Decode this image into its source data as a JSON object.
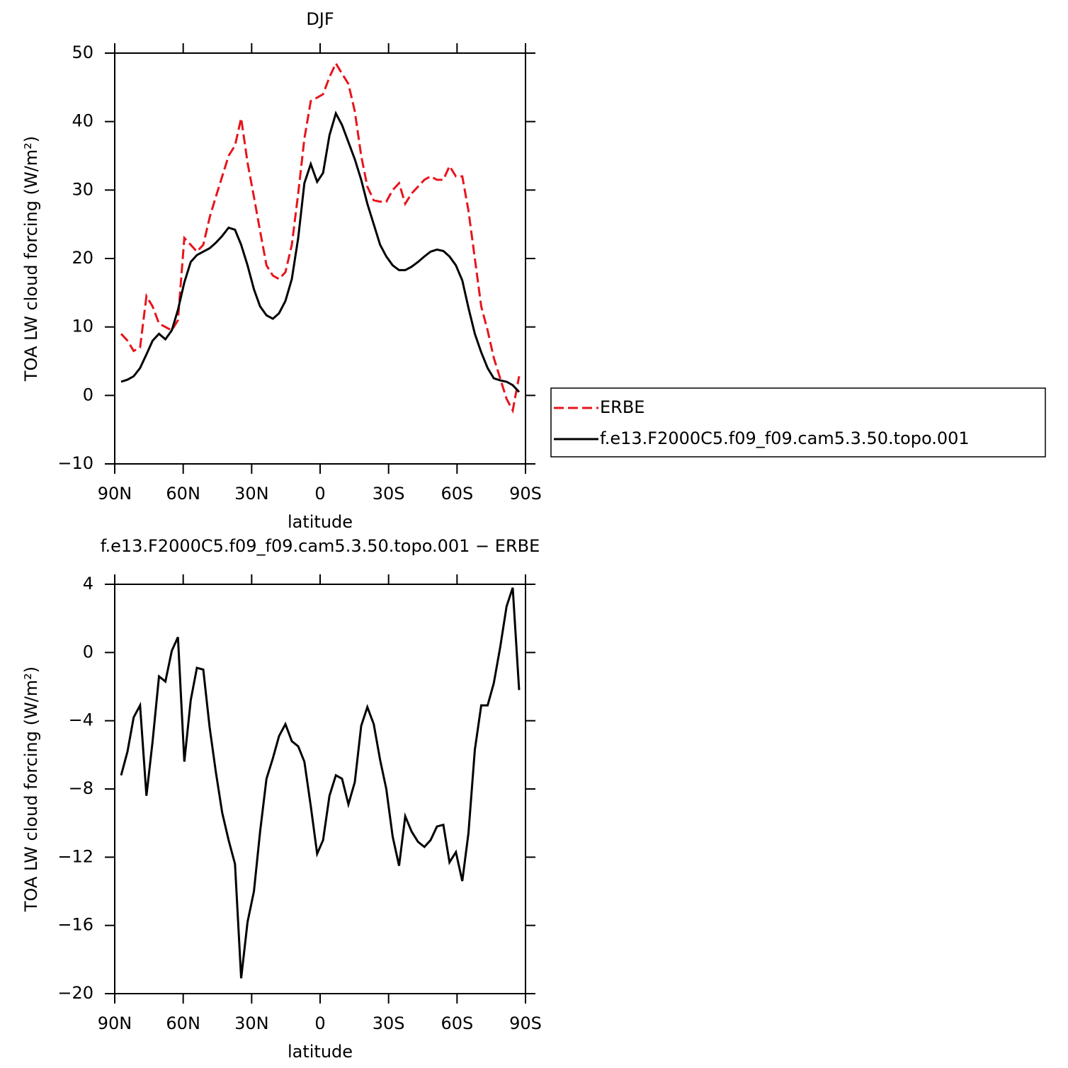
{
  "chart_data": [
    {
      "type": "line",
      "title": "DJF",
      "xlabel": "latitude",
      "ylabel": "TOA LW cloud forcing (W/m²)",
      "x": [
        87.2,
        84.4,
        81.7,
        78.9,
        76.1,
        73.4,
        70.6,
        67.8,
        65.0,
        62.3,
        59.5,
        56.7,
        54.0,
        51.2,
        48.4,
        45.7,
        42.9,
        40.1,
        37.3,
        34.6,
        31.8,
        29.0,
        26.3,
        23.5,
        20.7,
        18.0,
        15.2,
        12.4,
        9.6,
        6.9,
        4.1,
        1.3,
        -1.3,
        -4.1,
        -6.9,
        -9.6,
        -12.4,
        -15.2,
        -18.0,
        -20.7,
        -23.5,
        -26.3,
        -29.0,
        -31.8,
        -34.6,
        -37.3,
        -40.1,
        -42.9,
        -45.7,
        -48.4,
        -51.2,
        -54.0,
        -56.7,
        -59.5,
        -62.3,
        -65.0,
        -67.8,
        -70.6,
        -73.4,
        -76.1,
        -78.9,
        -81.7,
        -84.4,
        -87.2
      ],
      "xlim": [
        90,
        -90
      ],
      "xticks": [
        {
          "value": 90,
          "label": "90N"
        },
        {
          "value": 60,
          "label": "60N"
        },
        {
          "value": 30,
          "label": "30N"
        },
        0,
        {
          "value": -30,
          "label": "30S"
        },
        {
          "value": -60,
          "label": "60S"
        },
        {
          "value": -90,
          "label": "90S"
        }
      ],
      "ylim": [
        -10,
        50
      ],
      "yticks": [
        {
          "value": -10,
          "label": "−10"
        },
        0,
        10,
        20,
        30,
        40,
        50
      ],
      "legend": "right",
      "series": [
        {
          "name": "ERBE",
          "color": "#e8141b",
          "linestyle": "dashed",
          "values": [
            9,
            8,
            6.5,
            7,
            14.5,
            13,
            10.5,
            10,
            9.5,
            11,
            23,
            22,
            21,
            22,
            26,
            29,
            32,
            35,
            36.5,
            40.5,
            34,
            29,
            24,
            19,
            17.5,
            17,
            18,
            22,
            29.5,
            37.5,
            43,
            43.5,
            44,
            46.5,
            48.5,
            47,
            45.5,
            41.5,
            35,
            30.5,
            28.5,
            28.3,
            28.3,
            30,
            31,
            28,
            29.5,
            30.5,
            31.5,
            32,
            31.5,
            31.5,
            33.5,
            32,
            32,
            27,
            20,
            13,
            9.5,
            5.5,
            2.5,
            -0.5,
            -2.2,
            2.8
          ]
        },
        {
          "name": "f.e13.F2000C5.f09_f09.cam5.3.50.topo.001",
          "color": "#000000",
          "linestyle": "solid",
          "values": [
            2,
            2.3,
            2.8,
            4,
            6,
            8,
            9,
            8.2,
            9.5,
            12.5,
            16.5,
            19.5,
            20.5,
            21,
            21.5,
            22.3,
            23.3,
            24.5,
            24.2,
            22,
            19,
            15.5,
            13,
            11.7,
            11.2,
            12,
            13.8,
            17,
            23,
            31,
            33.8,
            31.2,
            32.5,
            38,
            41.2,
            39.5,
            37,
            34.5,
            31.5,
            28,
            25,
            22,
            20.3,
            19,
            18.3,
            18.3,
            18.8,
            19.5,
            20.3,
            21,
            21.3,
            21.1,
            20.3,
            19,
            16.8,
            12.8,
            9,
            6.3,
            4,
            2.5,
            2.2,
            2.0,
            1.5,
            0.5
          ]
        }
      ]
    },
    {
      "type": "line",
      "title": "f.e13.F2000C5.f09_f09.cam5.3.50.topo.001 − ERBE",
      "xlabel": "latitude",
      "ylabel": "TOA LW cloud forcing (W/m²)",
      "x": [
        87.2,
        84.4,
        81.7,
        78.9,
        76.1,
        73.4,
        70.6,
        67.8,
        65.0,
        62.3,
        59.5,
        56.7,
        54.0,
        51.2,
        48.4,
        45.7,
        42.9,
        40.1,
        37.3,
        34.6,
        31.8,
        29.0,
        26.3,
        23.5,
        20.7,
        18.0,
        15.2,
        12.4,
        9.6,
        6.9,
        4.1,
        1.3,
        -1.3,
        -4.1,
        -6.9,
        -9.6,
        -12.4,
        -15.2,
        -18.0,
        -20.7,
        -23.5,
        -26.3,
        -29.0,
        -31.8,
        -34.6,
        -37.3,
        -40.1,
        -42.9,
        -45.7,
        -48.4,
        -51.2,
        -54.0,
        -56.7,
        -59.5,
        -62.3,
        -65.0,
        -67.8,
        -70.6,
        -73.4,
        -76.1,
        -78.9,
        -81.7,
        -84.4,
        -87.2
      ],
      "xlim": [
        90,
        -90
      ],
      "xticks": [
        {
          "value": 90,
          "label": "90N"
        },
        {
          "value": 60,
          "label": "60N"
        },
        {
          "value": 30,
          "label": "30N"
        },
        0,
        {
          "value": -30,
          "label": "30S"
        },
        {
          "value": -60,
          "label": "60S"
        },
        {
          "value": -90,
          "label": "90S"
        }
      ],
      "ylim": [
        -20,
        4
      ],
      "yticks": [
        {
          "value": -20,
          "label": "−20"
        },
        {
          "value": -16,
          "label": "−16"
        },
        {
          "value": -12,
          "label": "−12"
        },
        {
          "value": -8,
          "label": "−8"
        },
        {
          "value": -4,
          "label": "−4"
        },
        0,
        4
      ],
      "series": [
        {
          "color": "#000000",
          "linestyle": "solid",
          "values": [
            -7.2,
            -5.8,
            -3.8,
            -3.1,
            -8.4,
            -5.2,
            -1.4,
            -1.7,
            0.1,
            0.9,
            -6.4,
            -2.8,
            -0.9,
            -1.0,
            -4.4,
            -7,
            -9.4,
            -11,
            -12.4,
            -19.1,
            -15.8,
            -14,
            -10.5,
            -7.4,
            -6.2,
            -4.9,
            -4.2,
            -5.2,
            -5.5,
            -6.4,
            -9,
            -11.8,
            -11,
            -8.4,
            -7.2,
            -7.4,
            -8.9,
            -7.6,
            -4.3,
            -3.2,
            -4.2,
            -6.3,
            -8,
            -10.8,
            -12.5,
            -9.6,
            -10.5,
            -11.1,
            -11.4,
            -11,
            -10.2,
            -10.1,
            -12.3,
            -11.7,
            -13.4,
            -10.6,
            -5.7,
            -3.1,
            -3.1,
            -1.8,
            0.3,
            2.7,
            3.8,
            -2.2
          ]
        }
      ]
    }
  ]
}
